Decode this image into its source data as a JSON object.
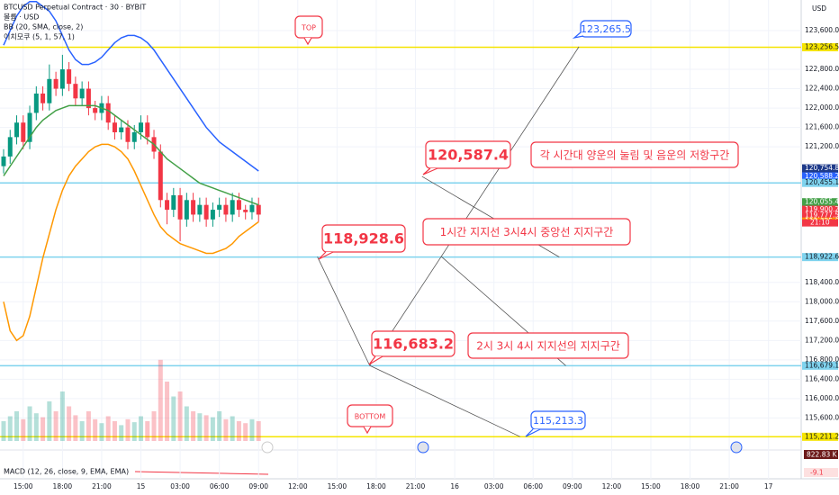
{
  "chart_data": {
    "type": "candlestick",
    "title": "BTCUSD Perpetual Contract · 30 · BYBIT",
    "legend_lines": [
      "볼륨 · USD",
      "BB (20, SMA, close, 2)",
      "이치모쿠 (5, 1, 57, 1)"
    ],
    "macd_label": "MACD (12, 26, close, 9, EMA, EMA)",
    "macd_value": -9.1,
    "currency": "USD",
    "volume_tag": "822.83 K",
    "ylim": [
      115124,
      124232
    ],
    "xlim": [
      0,
      122
    ],
    "vlim": [
      0,
      1000
    ],
    "grid": true,
    "up_color": "#089981",
    "down_color": "#f23645",
    "yticks": [
      {
        "value": 123600,
        "label": "123,600.0"
      },
      {
        "value": 122800,
        "label": "122,800.0"
      },
      {
        "value": 122400,
        "label": "122,400.0"
      },
      {
        "value": 122000,
        "label": "122,000.0"
      },
      {
        "value": 121600,
        "label": "121,600.0"
      },
      {
        "value": 121200,
        "label": "121,200.0"
      },
      {
        "value": 118400,
        "label": "118,400.0"
      },
      {
        "value": 118000,
        "label": "118,000.0"
      },
      {
        "value": 117600,
        "label": "117,600.0"
      },
      {
        "value": 117200,
        "label": "117,200.0"
      },
      {
        "value": 116800,
        "label": "116,800.0"
      },
      {
        "value": 116400,
        "label": "116,400.0"
      },
      {
        "value": 116000,
        "label": "116,000.0"
      },
      {
        "value": 115600,
        "label": "115,600.0"
      }
    ],
    "xticks": [
      {
        "value": 3,
        "label": "15:00"
      },
      {
        "value": 9,
        "label": "18:00"
      },
      {
        "value": 15,
        "label": "21:00"
      },
      {
        "value": 21,
        "label": "15"
      },
      {
        "value": 27,
        "label": "03:00"
      },
      {
        "value": 33,
        "label": "06:00"
      },
      {
        "value": 39,
        "label": "09:00"
      },
      {
        "value": 45,
        "label": "12:00"
      },
      {
        "value": 51,
        "label": "15:00"
      },
      {
        "value": 57,
        "label": "18:00"
      },
      {
        "value": 63,
        "label": "21:00"
      },
      {
        "value": 69,
        "label": "16"
      },
      {
        "value": 75,
        "label": "03:00"
      },
      {
        "value": 81,
        "label": "06:00"
      },
      {
        "value": 87,
        "label": "09:00"
      },
      {
        "value": 93,
        "label": "12:00"
      },
      {
        "value": 99,
        "label": "15:00"
      },
      {
        "value": 105,
        "label": "18:00"
      },
      {
        "value": 111,
        "label": "21:00"
      },
      {
        "value": 117,
        "label": "17"
      }
    ],
    "open": [
      120800,
      121000,
      121400,
      121700,
      121300,
      121900,
      122300,
      122100,
      122600,
      122400,
      122800,
      122500,
      122200,
      122400,
      122000,
      121900,
      122100,
      121700,
      121500,
      121600,
      121300,
      121500,
      121700,
      121400,
      121100,
      120100,
      119900,
      120200,
      119700,
      120100,
      119800,
      120000,
      119700,
      119900,
      120000,
      119800,
      120100,
      119900,
      119850,
      120000
    ],
    "high": [
      121150,
      121550,
      121850,
      121850,
      122050,
      122450,
      122450,
      122900,
      122750,
      123100,
      122950,
      122650,
      122550,
      122550,
      122150,
      122250,
      122250,
      121850,
      121750,
      121750,
      121650,
      121850,
      121850,
      121550,
      121250,
      120250,
      120350,
      120350,
      120250,
      120250,
      120150,
      120150,
      120050,
      120150,
      120150,
      120250,
      120250,
      120000,
      120150,
      120150
    ],
    "low": [
      120650,
      120850,
      121250,
      121150,
      121150,
      121750,
      121950,
      121950,
      122250,
      122250,
      122350,
      122050,
      122050,
      121850,
      121750,
      121750,
      121550,
      121350,
      121350,
      121150,
      121150,
      121350,
      121250,
      120950,
      119950,
      119600,
      119750,
      119250,
      119550,
      119650,
      119650,
      119550,
      119550,
      119750,
      119650,
      119650,
      119750,
      119700,
      119700,
      119650
    ],
    "close": [
      121000,
      121400,
      121700,
      121300,
      121900,
      122300,
      122100,
      122600,
      122400,
      122800,
      122500,
      122200,
      122400,
      122000,
      121900,
      122100,
      121700,
      121500,
      121600,
      121300,
      121500,
      121700,
      121400,
      121100,
      120100,
      119900,
      120200,
      119700,
      120100,
      119800,
      120000,
      119700,
      119900,
      120000,
      119800,
      120100,
      119900,
      119850,
      120000,
      119800
    ],
    "volume": [
      200,
      250,
      300,
      220,
      350,
      280,
      240,
      400,
      300,
      500,
      350,
      260,
      200,
      300,
      220,
      180,
      250,
      200,
      160,
      220,
      190,
      250,
      200,
      300,
      820,
      600,
      450,
      500,
      350,
      300,
      280,
      260,
      240,
      300,
      220,
      250,
      200,
      180,
      220,
      200
    ],
    "bb_upper": {
      "color": "#2962ff",
      "values": [
        123300,
        123600,
        123900,
        124100,
        124200,
        124200,
        124100,
        124000,
        123800,
        123500,
        123200,
        123000,
        122900,
        122900,
        122950,
        123050,
        123200,
        123350,
        123450,
        123500,
        123500,
        123450,
        123350,
        123200,
        123000,
        122800,
        122600,
        122400,
        122200,
        122000,
        121800,
        121600,
        121450,
        121300,
        121200,
        121100,
        121000,
        120900,
        120800,
        120700
      ]
    },
    "bb_middle": {
      "color": "#43a047",
      "values": [
        120600,
        120800,
        121000,
        121200,
        121400,
        121600,
        121750,
        121850,
        121950,
        122000,
        122050,
        122050,
        122050,
        122050,
        122050,
        122000,
        121950,
        121850,
        121750,
        121650,
        121550,
        121450,
        121350,
        121250,
        121100,
        120950,
        120850,
        120750,
        120650,
        120550,
        120450,
        120400,
        120350,
        120300,
        120250,
        120200,
        120150,
        120100,
        120050,
        120000
      ]
    },
    "bb_lower": {
      "color": "#ff9800",
      "values": [
        118000,
        117400,
        117200,
        117300,
        117700,
        118300,
        118900,
        119400,
        119900,
        120300,
        120600,
        120800,
        120950,
        121100,
        121200,
        121250,
        121250,
        121200,
        121100,
        120950,
        120700,
        120400,
        120100,
        119800,
        119550,
        119400,
        119300,
        119200,
        119150,
        119100,
        119050,
        119000,
        119000,
        119050,
        119100,
        119200,
        119350,
        119450,
        119550,
        119650
      ]
    },
    "horizontal_lines": [
      {
        "value": 123256.5,
        "color": "#f5e400"
      },
      {
        "value": 115211.2,
        "color": "#f5e400"
      },
      {
        "value": 120455.1,
        "color": "#7fd3ee"
      },
      {
        "value": 118922.6,
        "color": "#7fd3ee"
      },
      {
        "value": 116679.1,
        "color": "#7fd3ee"
      }
    ],
    "price_labels": [
      {
        "value": 123256.5,
        "label": "123,256.5",
        "color": "#f5e400"
      },
      {
        "value": 120754.8,
        "label": "120,754.8",
        "color": "#1e3a8a"
      },
      {
        "value": 120588.2,
        "label": "120,588.2",
        "color": "#2962ff"
      },
      {
        "value": 120455.1,
        "label": "120,455.1",
        "color": "#7fd3ee"
      },
      {
        "value": 120055.4,
        "label": "120,055.4",
        "color": "#43a047"
      },
      {
        "value": 119900.2,
        "label": "119,900.2",
        "color": "#f23645"
      },
      {
        "value": 119777.5,
        "label": "119,777.5",
        "color": "#f23645"
      },
      {
        "value": 119655.6,
        "label": "119,655.6",
        "color": "#ff9800"
      },
      {
        "value": 118922.6,
        "label": "118,922.6",
        "color": "#7fd3ee"
      },
      {
        "value": 116679.1,
        "label": "116,679.1",
        "color": "#7fd3ee"
      },
      {
        "value": 115211.2,
        "label": "115,211.2",
        "color": "#f5e400"
      }
    ],
    "countdown": "21:10",
    "projection_lines": [
      {
        "x": [
          48,
          56
        ],
        "y": [
          118928.6,
          116683.2
        ]
      },
      {
        "x": [
          56,
          88
        ],
        "y": [
          116683.2,
          123265.5
        ]
      },
      {
        "x": [
          64,
          85
        ],
        "y": [
          120587.4,
          118922.6
        ]
      },
      {
        "x": [
          56,
          79
        ],
        "y": [
          116683.2,
          115213.3
        ]
      },
      {
        "x": [
          67,
          86
        ],
        "y": [
          118928.6,
          116679.1
        ]
      }
    ],
    "price_callouts": [
      {
        "value": 123265.5,
        "label": "123,265.5"
      },
      {
        "value": 120587.4,
        "label": "120,587.4"
      },
      {
        "value": 118928.6,
        "label": "118,928.6"
      },
      {
        "value": 116683.2,
        "label": "116,683.2"
      },
      {
        "value": 115213.3,
        "label": "115,213.3"
      }
    ],
    "notes": [
      "TOP",
      "BOTTOM",
      "각 시간대 양운의 눌림 및 음운의 저항구간",
      "1시간 지지선 3시4시 중앙선 지지구간",
      "2시 3시 4시 지지선의 지지구간"
    ]
  }
}
